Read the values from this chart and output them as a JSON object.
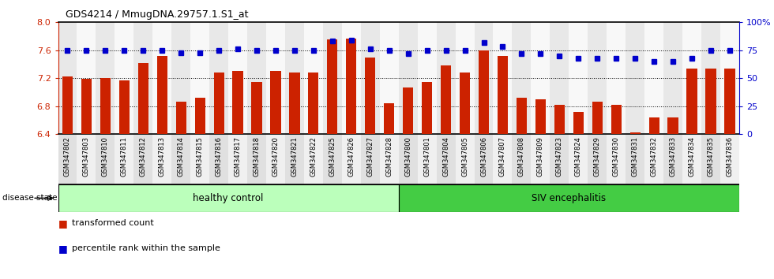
{
  "title": "GDS4214 / MmugDNA.29757.1.S1_at",
  "samples": [
    "GSM347802",
    "GSM347803",
    "GSM347810",
    "GSM347811",
    "GSM347812",
    "GSM347813",
    "GSM347814",
    "GSM347815",
    "GSM347816",
    "GSM347817",
    "GSM347818",
    "GSM347820",
    "GSM347821",
    "GSM347822",
    "GSM347825",
    "GSM347826",
    "GSM347827",
    "GSM347828",
    "GSM347800",
    "GSM347801",
    "GSM347804",
    "GSM347805",
    "GSM347806",
    "GSM347807",
    "GSM347808",
    "GSM347809",
    "GSM347823",
    "GSM347824",
    "GSM347829",
    "GSM347830",
    "GSM347831",
    "GSM347832",
    "GSM347833",
    "GSM347834",
    "GSM347835",
    "GSM347836"
  ],
  "bar_values": [
    7.22,
    7.19,
    7.2,
    7.17,
    7.42,
    7.52,
    6.86,
    6.92,
    7.28,
    7.3,
    7.15,
    7.3,
    7.28,
    7.28,
    7.75,
    7.77,
    7.5,
    6.84,
    7.07,
    7.15,
    7.38,
    7.28,
    7.6,
    7.52,
    6.92,
    6.9,
    6.82,
    6.72,
    6.86,
    6.82,
    6.42,
    6.64,
    6.64,
    7.34,
    7.34,
    7.34
  ],
  "percentile_values": [
    75,
    75,
    75,
    75,
    75,
    75,
    73,
    73,
    75,
    76,
    75,
    75,
    75,
    75,
    83,
    84,
    76,
    75,
    72,
    75,
    75,
    75,
    82,
    78,
    72,
    72,
    70,
    68,
    68,
    68,
    68,
    65,
    65,
    68,
    75,
    75
  ],
  "healthy_count": 18,
  "ylim_left": [
    6.4,
    8.0
  ],
  "ylim_right": [
    0,
    100
  ],
  "yticks_left": [
    6.4,
    6.8,
    7.2,
    7.6,
    8.0
  ],
  "yticks_right": [
    0,
    25,
    50,
    75,
    100
  ],
  "ytick_labels_right": [
    "0",
    "25",
    "50",
    "75",
    "100%"
  ],
  "bar_color": "#cc2200",
  "dot_color": "#0000cc",
  "healthy_color": "#bbffbb",
  "siv_color": "#44cc44",
  "bg_color": "#ffffff",
  "label_transformed": "transformed count",
  "label_percentile": "percentile rank within the sample",
  "group_label_healthy": "healthy control",
  "group_label_siv": "SIV encephalitis",
  "disease_state_label": "disease state"
}
